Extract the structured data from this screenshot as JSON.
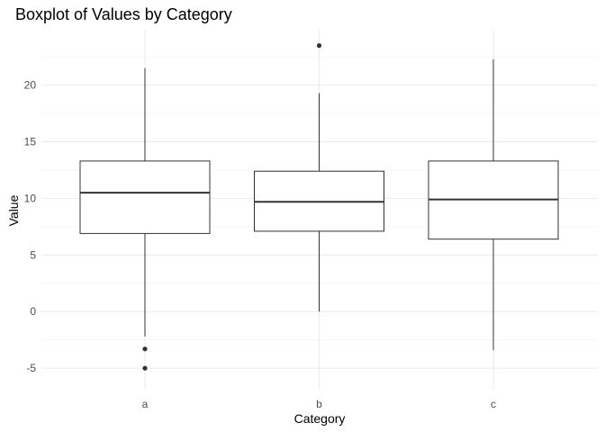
{
  "chart_data": {
    "type": "boxplot",
    "title": "Boxplot of Values by Category",
    "xlabel": "Category",
    "ylabel": "Value",
    "ylim": [
      -6.9,
      24.9
    ],
    "yticks": [
      -5,
      0,
      5,
      10,
      15,
      20
    ],
    "ytick_labels": [
      "-5",
      "0",
      "5",
      "10",
      "15",
      "20"
    ],
    "grid": true,
    "categories": [
      "a",
      "b",
      "c"
    ],
    "boxes": [
      {
        "category": "a",
        "whisker_low": -2.2,
        "q1": 6.9,
        "median": 10.5,
        "q3": 13.3,
        "whisker_high": 21.5,
        "outliers": [
          -3.3,
          -5.0
        ]
      },
      {
        "category": "b",
        "whisker_low": 0.0,
        "q1": 7.1,
        "median": 9.7,
        "q3": 12.4,
        "whisker_high": 19.3,
        "outliers": [
          23.5
        ]
      },
      {
        "category": "c",
        "whisker_low": -3.4,
        "q1": 6.4,
        "median": 9.9,
        "q3": 13.3,
        "whisker_high": 22.3,
        "outliers": []
      }
    ]
  }
}
